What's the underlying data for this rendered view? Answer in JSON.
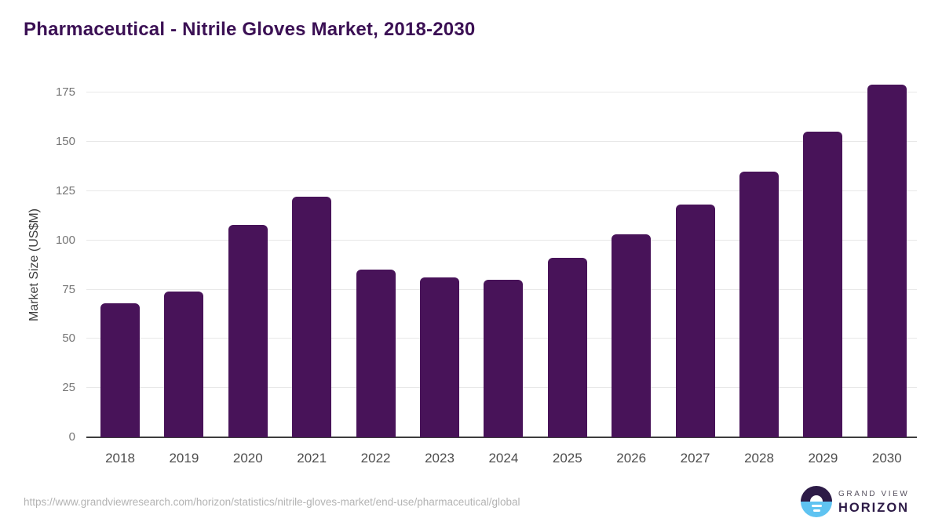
{
  "title": "Pharmaceutical - Nitrile Gloves Market, 2018-2030",
  "chart_data": {
    "type": "bar",
    "title": "Pharmaceutical - Nitrile Gloves Market, 2018-2030",
    "categories": [
      "2018",
      "2019",
      "2020",
      "2021",
      "2022",
      "2023",
      "2024",
      "2025",
      "2026",
      "2027",
      "2028",
      "2029",
      "2030"
    ],
    "values": [
      68,
      74,
      108,
      122,
      85,
      81,
      80,
      91,
      103,
      118,
      135,
      155,
      179
    ],
    "xlabel": "",
    "ylabel": "Market Size (US$M)",
    "ylim": [
      0,
      185
    ],
    "yticks": [
      0,
      25,
      50,
      75,
      100,
      125,
      150,
      175
    ],
    "grid": "horizontal-only",
    "legend": false,
    "bar_color": "#481359"
  },
  "footer": {
    "source_url": "https://www.grandviewresearch.com/horizon/statistics/nitrile-gloves-market/end-use/pharmaceutical/global",
    "brand_line1": "GRAND VIEW",
    "brand_line2": "HORIZON"
  },
  "colors": {
    "title": "#3b1054",
    "bar": "#481359",
    "gridline": "#e8e8e8",
    "axis_line": "#3d3d3d",
    "y_tick_label": "#757575",
    "x_tick_label": "#4d4d4d",
    "url_text": "#b3b3b3",
    "logo_top_half": "#2d1b47",
    "logo_bottom_half": "#5fc3f1"
  }
}
